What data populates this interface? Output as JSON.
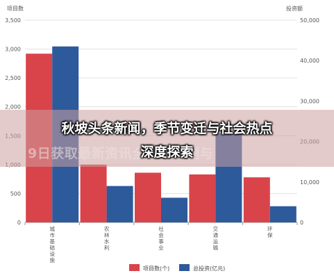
{
  "chart_data": {
    "type": "bar",
    "categories": [
      "城市基础设施",
      "农林水利",
      "社会事业",
      "交通运输",
      "环保"
    ],
    "series": [
      {
        "name": "项目数(个)",
        "axis": "left",
        "color": "#d9444a",
        "values": [
          2920,
          1000,
          860,
          830,
          780
        ]
      },
      {
        "name": "总投资(亿元)",
        "axis": "right",
        "color": "#2d5a9b",
        "values": [
          43500,
          9000,
          6100,
          22000,
          4000
        ]
      }
    ],
    "left_axis": {
      "label": "项目数",
      "ylim": [
        0,
        3500
      ],
      "ticks": [
        "0",
        "500",
        "1,000",
        "1,500",
        "2,000",
        "2,500",
        "3,000",
        "3,500"
      ]
    },
    "right_axis": {
      "label": "投资额",
      "ylim": [
        0,
        50000
      ],
      "ticks": [
        "0",
        "10,000",
        "20,000",
        "30,000",
        "40,000",
        "50,000"
      ]
    },
    "legend_position": "bottom",
    "grid": true
  },
  "overlay": {
    "line1": "秋坡头条新闻，季节变迁与社会热点",
    "line2": "深度探索",
    "background_text": "9日获取最新资讯全方位评测与"
  }
}
